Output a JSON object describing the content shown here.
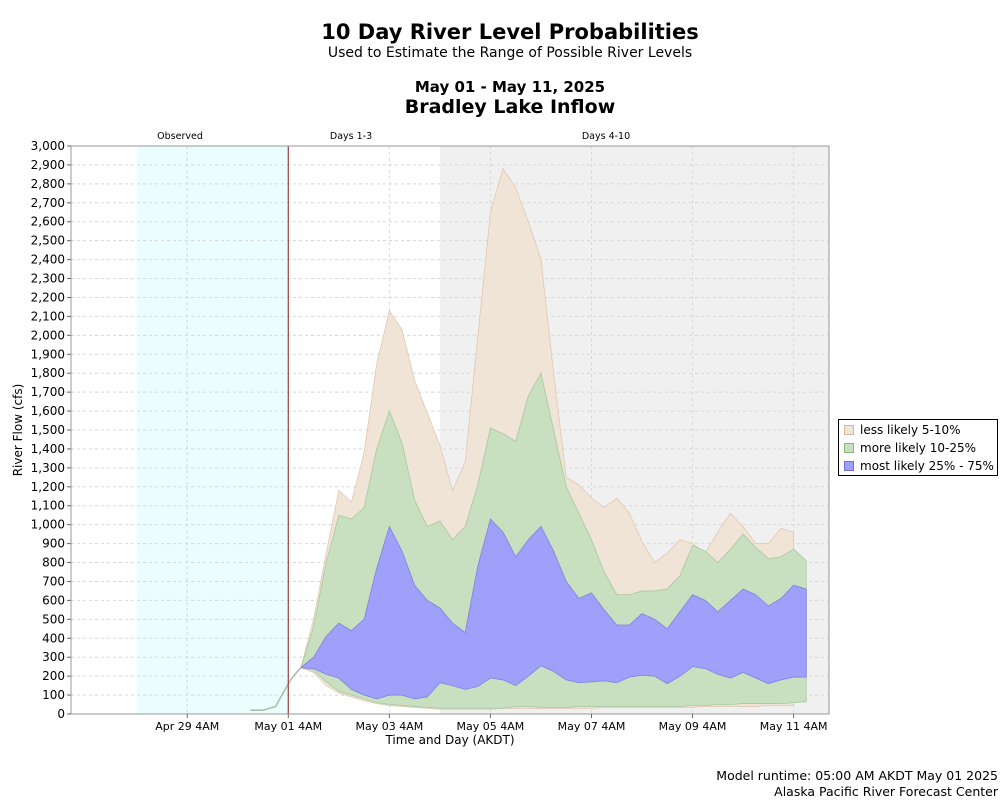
{
  "header": {
    "title": "10 Day River Level Probabilities",
    "subtitle": "Used to Estimate the Range of Possible River Levels",
    "date_range": "May 01 - May 11, 2025",
    "location": "Bradley Lake Inflow"
  },
  "periods": [
    "Observed",
    "Days 1-3",
    "Days 4-10"
  ],
  "legend": [
    {
      "label": "less likely 5-10%",
      "color": "#f0e4d7",
      "border": "#d8b89a"
    },
    {
      "label": "more likely 10-25%",
      "color": "#c8dfc0",
      "border": "#88b878"
    },
    {
      "label": "most likely 25% - 75%",
      "color": "#a0a0fa",
      "border": "#7070d8"
    }
  ],
  "footer": {
    "runtime": "Model runtime: 05:00 AM AKDT May 01 2025",
    "center": "Alaska Pacific River Forecast Center"
  },
  "chart_data": {
    "type": "area",
    "xlabel": "Time and Day (AKDT)",
    "ylabel": "River Flow (cfs)",
    "ylim": [
      0,
      3000
    ],
    "yticks": [
      0,
      100,
      200,
      300,
      400,
      500,
      600,
      700,
      800,
      900,
      1000,
      1100,
      1200,
      1300,
      1400,
      1500,
      1600,
      1700,
      1800,
      1900,
      2000,
      2100,
      2200,
      2300,
      2400,
      2500,
      2600,
      2700,
      2800,
      2900,
      3000
    ],
    "xlim_days": [
      -4.3,
      10.7
    ],
    "xtick_labels": [
      "Apr 29 4AM",
      "May 01 4AM",
      "May 03 4AM",
      "May 05 4AM",
      "May 07 4AM",
      "May 09 4AM",
      "May 11 4AM"
    ],
    "xtick_days": [
      -2,
      0,
      2,
      4,
      6,
      8,
      10
    ],
    "observed_start_day": -3.0,
    "forecast_start_day": 0.0,
    "days4_start_day": 3.0,
    "grid": true,
    "observed": {
      "x": [
        -0.75,
        -0.5,
        -0.25,
        0.0,
        0.1,
        0.25
      ],
      "y": [
        20,
        20,
        40,
        160,
        200,
        245
      ]
    },
    "x": [
      0.25,
      0.5,
      0.75,
      1.0,
      1.25,
      1.5,
      1.75,
      2.0,
      2.25,
      2.5,
      2.75,
      3.0,
      3.25,
      3.5,
      3.75,
      4.0,
      4.25,
      4.5,
      4.75,
      5.0,
      5.25,
      5.5,
      5.75,
      6.0,
      6.25,
      6.5,
      6.75,
      7.0,
      7.25,
      7.5,
      7.75,
      8.0,
      8.25,
      8.5,
      8.75,
      9.0,
      9.25,
      9.5,
      9.75,
      10.0,
      10.25,
      10.5
    ],
    "p5": [
      245,
      220,
      150,
      110,
      90,
      70,
      55,
      45,
      40,
      35,
      30,
      25,
      25,
      25,
      25,
      25,
      30,
      30,
      30,
      30,
      30,
      30,
      30,
      30,
      35,
      35,
      35,
      35,
      35,
      35,
      35,
      35,
      40,
      40,
      40,
      40,
      40,
      45,
      45,
      45,
      50,
      50
    ],
    "p10": [
      245,
      230,
      170,
      120,
      100,
      80,
      60,
      50,
      45,
      40,
      35,
      30,
      30,
      30,
      30,
      30,
      30,
      40,
      40,
      35,
      35,
      35,
      40,
      40,
      40,
      40,
      40,
      40,
      40,
      40,
      40,
      45,
      45,
      50,
      50,
      55,
      55,
      55,
      55,
      60,
      65,
      60
    ],
    "p25": [
      245,
      240,
      210,
      190,
      130,
      100,
      80,
      100,
      100,
      80,
      90,
      165,
      150,
      130,
      145,
      190,
      180,
      150,
      200,
      255,
      225,
      180,
      165,
      170,
      175,
      165,
      195,
      205,
      200,
      160,
      200,
      250,
      240,
      210,
      190,
      220,
      190,
      160,
      180,
      195,
      195,
      190
    ],
    "p75": [
      245,
      300,
      410,
      480,
      440,
      500,
      770,
      990,
      860,
      680,
      600,
      560,
      480,
      430,
      780,
      1030,
      960,
      830,
      920,
      990,
      860,
      700,
      610,
      640,
      550,
      470,
      470,
      530,
      500,
      450,
      540,
      630,
      600,
      540,
      600,
      660,
      630,
      570,
      610,
      680,
      660,
      null
    ],
    "p90": [
      245,
      460,
      800,
      1050,
      1030,
      1090,
      1400,
      1600,
      1430,
      1130,
      990,
      1020,
      920,
      990,
      1210,
      1510,
      1480,
      1440,
      1680,
      1800,
      1500,
      1200,
      1060,
      920,
      750,
      630,
      630,
      650,
      650,
      660,
      730,
      890,
      860,
      800,
      870,
      950,
      880,
      820,
      830,
      870,
      810,
      null
    ],
    "p95": [
      245,
      500,
      850,
      1180,
      1120,
      1380,
      1850,
      2130,
      2030,
      1760,
      1590,
      1420,
      1180,
      1330,
      1990,
      2650,
      2880,
      2780,
      2600,
      2400,
      1800,
      1250,
      1210,
      1140,
      1090,
      1140,
      1060,
      910,
      800,
      850,
      920,
      900,
      850,
      960,
      1060,
      990,
      900,
      900,
      980,
      960,
      null,
      null
    ]
  }
}
